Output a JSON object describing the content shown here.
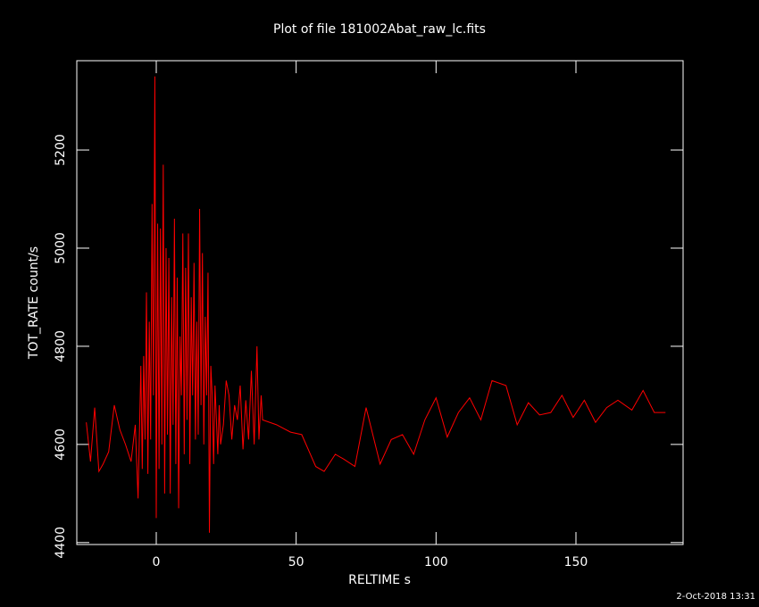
{
  "chart_data": {
    "type": "line",
    "title": "Plot of file 181002Abat_raw_lc.fits",
    "xlabel": "RELTIME  s",
    "ylabel": "TOT_RATE  count/s",
    "footer": "2-Oct-2018 13:31",
    "x": [
      -25,
      -23.5,
      -22,
      -20.5,
      -19,
      -17,
      -15,
      -13,
      -11,
      -9,
      -7.5,
      -6.5,
      -5.5,
      -5,
      -4.5,
      -4,
      -3.5,
      -3,
      -2.5,
      -2,
      -1.5,
      -1,
      -0.5,
      0,
      0.5,
      1,
      1.5,
      2,
      2.5,
      3,
      3.5,
      4,
      4.5,
      5,
      5.5,
      6,
      6.5,
      7,
      7.5,
      8,
      8.5,
      9,
      9.5,
      10,
      10.5,
      11,
      11.5,
      12,
      12.5,
      13,
      13.5,
      14,
      14.5,
      15,
      15.5,
      16,
      16.5,
      17,
      17.5,
      18,
      18.5,
      19,
      19.5,
      20,
      20.5,
      21,
      22,
      22.5,
      23,
      24,
      25,
      26,
      27,
      28,
      29,
      30,
      31,
      32,
      33,
      34,
      35,
      36,
      36.7,
      37.5,
      38,
      43,
      48,
      52,
      57,
      60,
      64,
      67,
      71,
      75,
      80,
      84,
      88,
      92,
      96,
      100,
      104,
      108,
      112,
      116,
      120,
      125,
      129,
      133,
      137,
      141,
      145,
      149,
      153,
      157,
      161,
      165,
      170,
      174,
      178,
      182
    ],
    "values": [
      4645,
      4565,
      4675,
      4545,
      4560,
      4585,
      4680,
      4630,
      4600,
      4565,
      4640,
      4490,
      4760,
      4550,
      4780,
      4610,
      4910,
      4540,
      4850,
      4610,
      5090,
      4700,
      5350,
      4450,
      5050,
      4550,
      5040,
      4600,
      5170,
      4500,
      5000,
      4620,
      4980,
      4500,
      4900,
      4640,
      5060,
      4560,
      4940,
      4470,
      4820,
      4700,
      5030,
      4580,
      4960,
      4650,
      5030,
      4560,
      4900,
      4700,
      4970,
      4610,
      4850,
      4620,
      5080,
      4680,
      4990,
      4600,
      4860,
      4700,
      4950,
      4420,
      4760,
      4700,
      4560,
      4720,
      4580,
      4680,
      4600,
      4640,
      4730,
      4700,
      4610,
      4680,
      4650,
      4720,
      4590,
      4690,
      4610,
      4750,
      4600,
      4800,
      4610,
      4700,
      4650,
      4640,
      4625,
      4620,
      4555,
      4545,
      4580,
      4570,
      4555,
      4675,
      4560,
      4610,
      4620,
      4580,
      4650,
      4695,
      4615,
      4665,
      4695,
      4650,
      4730,
      4720,
      4640,
      4685,
      4660,
      4665,
      4700,
      4655,
      4690,
      4645,
      4675,
      4690,
      4670,
      4710,
      4665,
      4665
    ],
    "color": "#ff0000",
    "xlim": [
      -28.4,
      188.3
    ],
    "ylim": [
      4396,
      5382
    ],
    "xticks": [
      0,
      50,
      100,
      150
    ],
    "yticks": [
      4400,
      4600,
      4800,
      5000,
      5200
    ]
  }
}
